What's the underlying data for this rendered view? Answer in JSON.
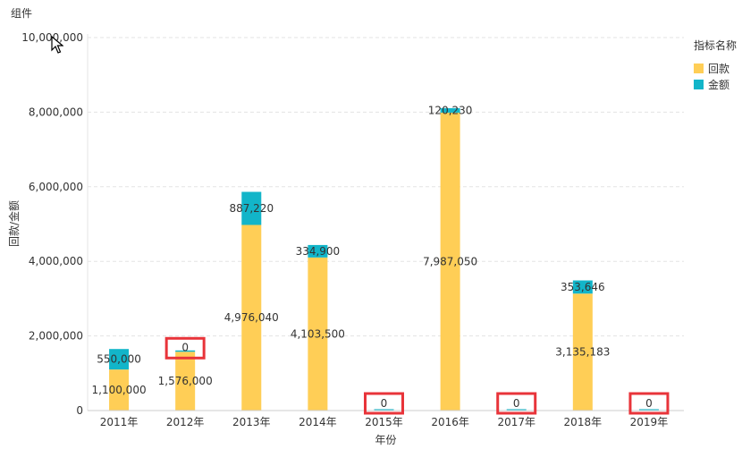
{
  "widget": {
    "title": "组件"
  },
  "legend": {
    "title": "指标名称",
    "items": [
      {
        "label": "回款",
        "color": "#FFCE56"
      },
      {
        "label": "金额",
        "color": "#12B5C9"
      }
    ]
  },
  "icons": {
    "cursor": "mouse-pointer-icon"
  },
  "highlight_color": "#E8343A",
  "chart_data": {
    "type": "bar",
    "stacked": true,
    "xlabel": "年份",
    "ylabel": "回款/金额",
    "ylim": [
      0,
      10000000
    ],
    "yticks": [
      0,
      2000000,
      4000000,
      6000000,
      8000000,
      10000000
    ],
    "ytick_labels": [
      "0",
      "2,000,000",
      "4,000,000",
      "6,000,000",
      "8,000,000",
      "10,000,000"
    ],
    "grid": true,
    "legend_position": "top-right",
    "categories": [
      "2011年",
      "2012年",
      "2013年",
      "2014年",
      "2015年",
      "2016年",
      "2017年",
      "2018年",
      "2019年"
    ],
    "series": [
      {
        "name": "回款",
        "color": "#FFCE56",
        "values": [
          1100000,
          1576000,
          4976040,
          4103500,
          0,
          7987050,
          0,
          3135183,
          0
        ],
        "labels": [
          "1,100,000",
          "1,576,000",
          "4,976,040",
          "4,103,500",
          "",
          "7,987,050",
          "",
          "3,135,183",
          ""
        ]
      },
      {
        "name": "金额",
        "color": "#12B5C9",
        "values": [
          550000,
          0,
          887220,
          334900,
          0,
          120230,
          0,
          353646,
          0
        ],
        "labels": [
          "550,000",
          "0",
          "887,220",
          "334,900",
          "0",
          "120,230",
          "0",
          "353,646",
          "0"
        ]
      }
    ],
    "highlighted_categories": [
      "2012年",
      "2015年",
      "2017年",
      "2019年"
    ]
  }
}
